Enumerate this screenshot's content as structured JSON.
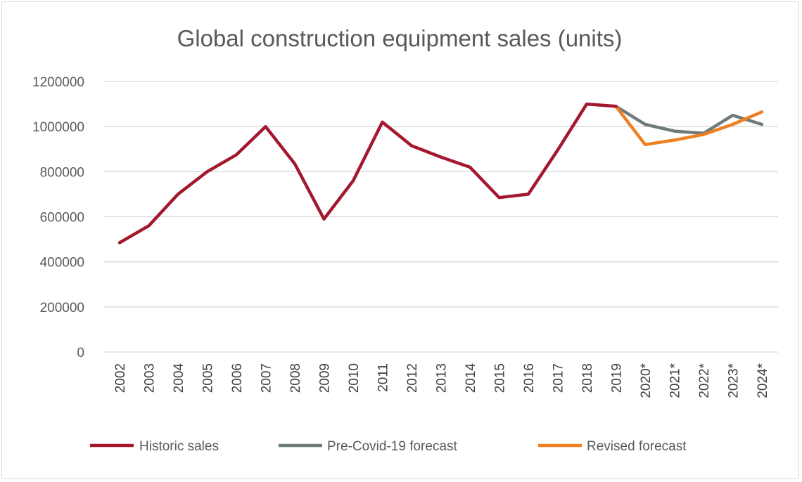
{
  "chart_data": {
    "type": "line",
    "title": "Global construction equipment sales (units)",
    "xlabel": "",
    "ylabel": "",
    "ylim": [
      0,
      1200000
    ],
    "yticks": [
      "0",
      "200000",
      "400000",
      "600000",
      "800000",
      "1000000",
      "1200000"
    ],
    "categories": [
      "2002",
      "2003",
      "2004",
      "2005",
      "2006",
      "2007",
      "2008",
      "2009",
      "2010",
      "2011",
      "2012",
      "2013",
      "2014",
      "2015",
      "2016",
      "2017",
      "2018",
      "2019",
      "2020*",
      "2021*",
      "2022*",
      "2023*",
      "2024*"
    ],
    "grid": "horizontal",
    "legend_position": "bottom",
    "series": [
      {
        "name": "Historic sales",
        "color": "#a3182f",
        "values": [
          485000,
          560000,
          700000,
          800000,
          875000,
          1000000,
          835000,
          590000,
          760000,
          1020000,
          915000,
          865000,
          820000,
          685000,
          700000,
          895000,
          1100000,
          1090000,
          null,
          null,
          null,
          null,
          null
        ]
      },
      {
        "name": "Pre-Covid-19 forecast",
        "color": "#6d7b7b",
        "values": [
          null,
          null,
          null,
          null,
          null,
          null,
          null,
          null,
          null,
          null,
          null,
          null,
          null,
          null,
          null,
          null,
          null,
          1090000,
          1010000,
          980000,
          970000,
          1050000,
          1010000
        ]
      },
      {
        "name": "Revised forecast",
        "color": "#f07f21",
        "values": [
          null,
          null,
          null,
          null,
          null,
          null,
          null,
          null,
          null,
          null,
          null,
          null,
          null,
          null,
          null,
          null,
          null,
          1090000,
          920000,
          940000,
          965000,
          1010000,
          1065000
        ]
      }
    ]
  }
}
